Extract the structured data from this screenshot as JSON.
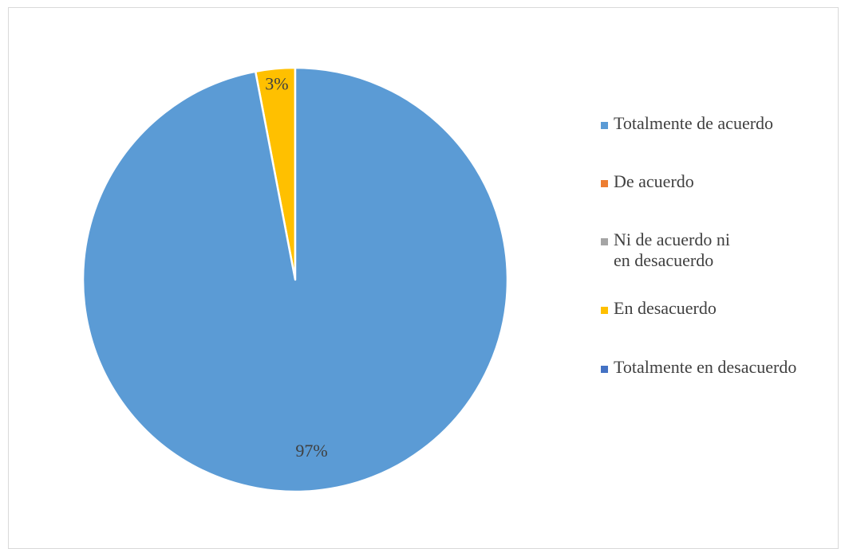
{
  "chart_data": {
    "type": "pie",
    "title": "",
    "categories": [
      "Totalmente de acuerdo",
      "De acuerdo",
      "Ni de acuerdo ni en desacuerdo",
      "En desacuerdo",
      "Totalmente en desacuerdo"
    ],
    "values": [
      97,
      0,
      0,
      3,
      0
    ],
    "data_labels": [
      "97%",
      "",
      "",
      "3%",
      ""
    ],
    "colors": [
      "#5b9bd5",
      "#ed7d31",
      "#a5a5a5",
      "#ffc000",
      "#4472c4"
    ],
    "legend_position": "right"
  },
  "legend": {
    "items": [
      {
        "label": "Totalmente de acuerdo",
        "color": "#5b9bd5"
      },
      {
        "label": "De acuerdo",
        "color": "#ed7d31"
      },
      {
        "label": "Ni de acuerdo ni en desacuerdo",
        "color": "#a5a5a5"
      },
      {
        "label": "En desacuerdo",
        "color": "#ffc000"
      },
      {
        "label": "Totalmente en desacuerdo",
        "color": "#4472c4"
      }
    ]
  }
}
